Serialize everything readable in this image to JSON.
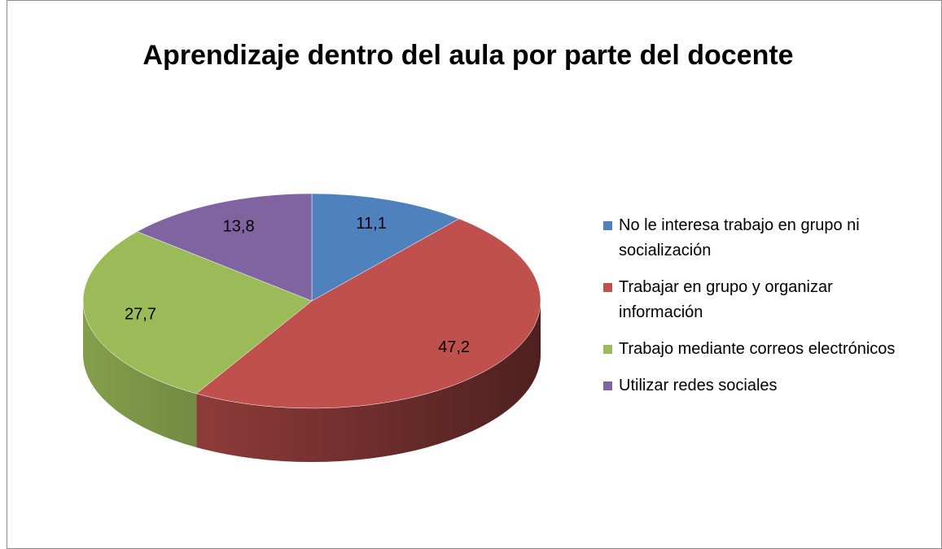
{
  "chart_data": {
    "type": "pie",
    "title": "Aprendizaje dentro del aula por parte del docente",
    "categories": [
      "No le interesa trabajo en grupo ni socialización",
      "Trabajar en grupo y organizar información",
      "Trabajo mediante correos electrónicos",
      "Utilizar redes sociales"
    ],
    "values": [
      11.1,
      47.2,
      27.7,
      13.8
    ],
    "value_labels": [
      "11,1",
      "47,2",
      "27,7",
      "13,8"
    ],
    "colors": [
      "#4f81bd",
      "#c0504d",
      "#9bbb59",
      "#8064a2"
    ],
    "legend": "right"
  }
}
